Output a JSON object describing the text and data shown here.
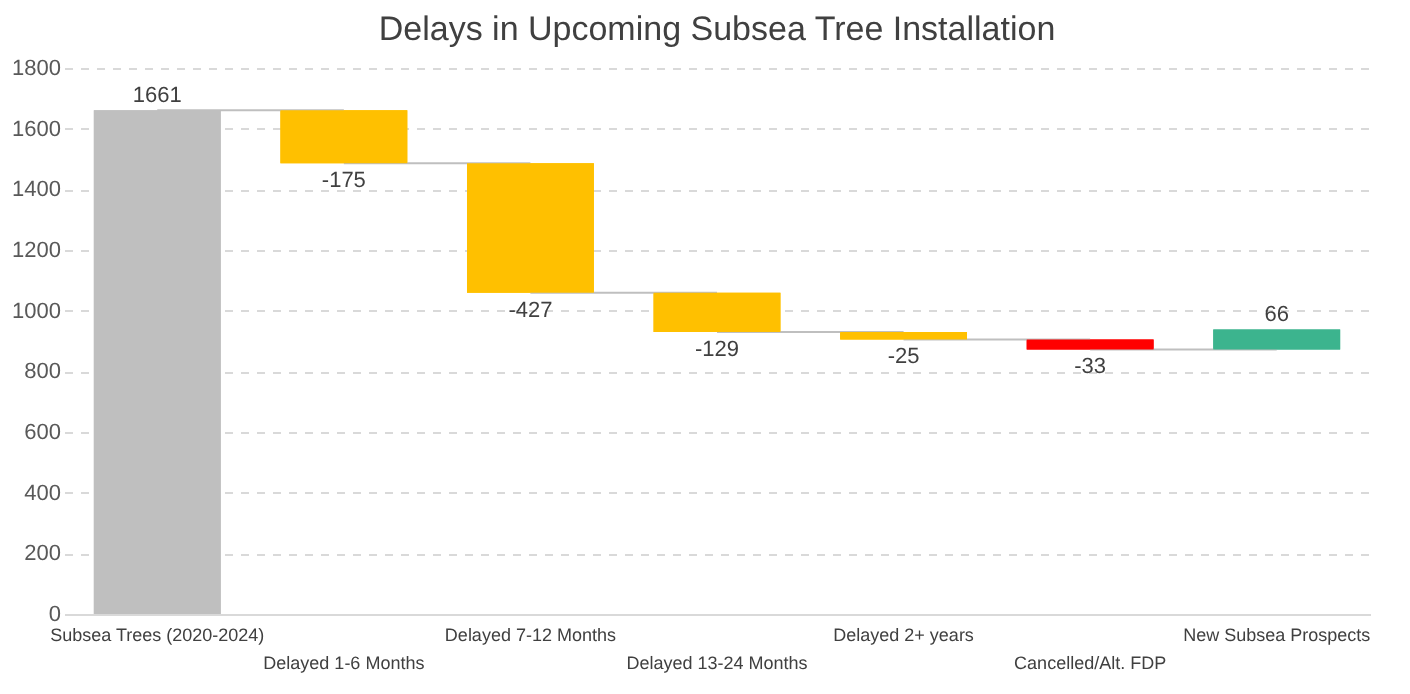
{
  "chart_data": {
    "type": "bar",
    "title": "Delays in Upcoming Subsea Tree Installation",
    "categories": [
      "Subsea Trees (2020-2024)",
      "Delayed 1-6 Months",
      "Delayed 7-12 Months",
      "Delayed 13-24 Months",
      "Delayed 2+ years",
      "Cancelled/Alt. FDP",
      "New Subsea Prospects"
    ],
    "values": [
      1661,
      -175,
      -427,
      -129,
      -25,
      -33,
      66
    ],
    "base": [
      0,
      1661,
      1486,
      1059,
      930,
      905,
      872
    ],
    "colors": [
      "#bfbfbf",
      "#ffc000",
      "#ffc000",
      "#ffc000",
      "#ffc000",
      "#ff0000",
      "#3cb48e"
    ],
    "ylim": [
      0,
      1800
    ],
    "yticks": [
      0,
      200,
      400,
      600,
      800,
      1000,
      1200,
      1400,
      1600,
      1800
    ],
    "grid": "y",
    "data_labels": true
  }
}
